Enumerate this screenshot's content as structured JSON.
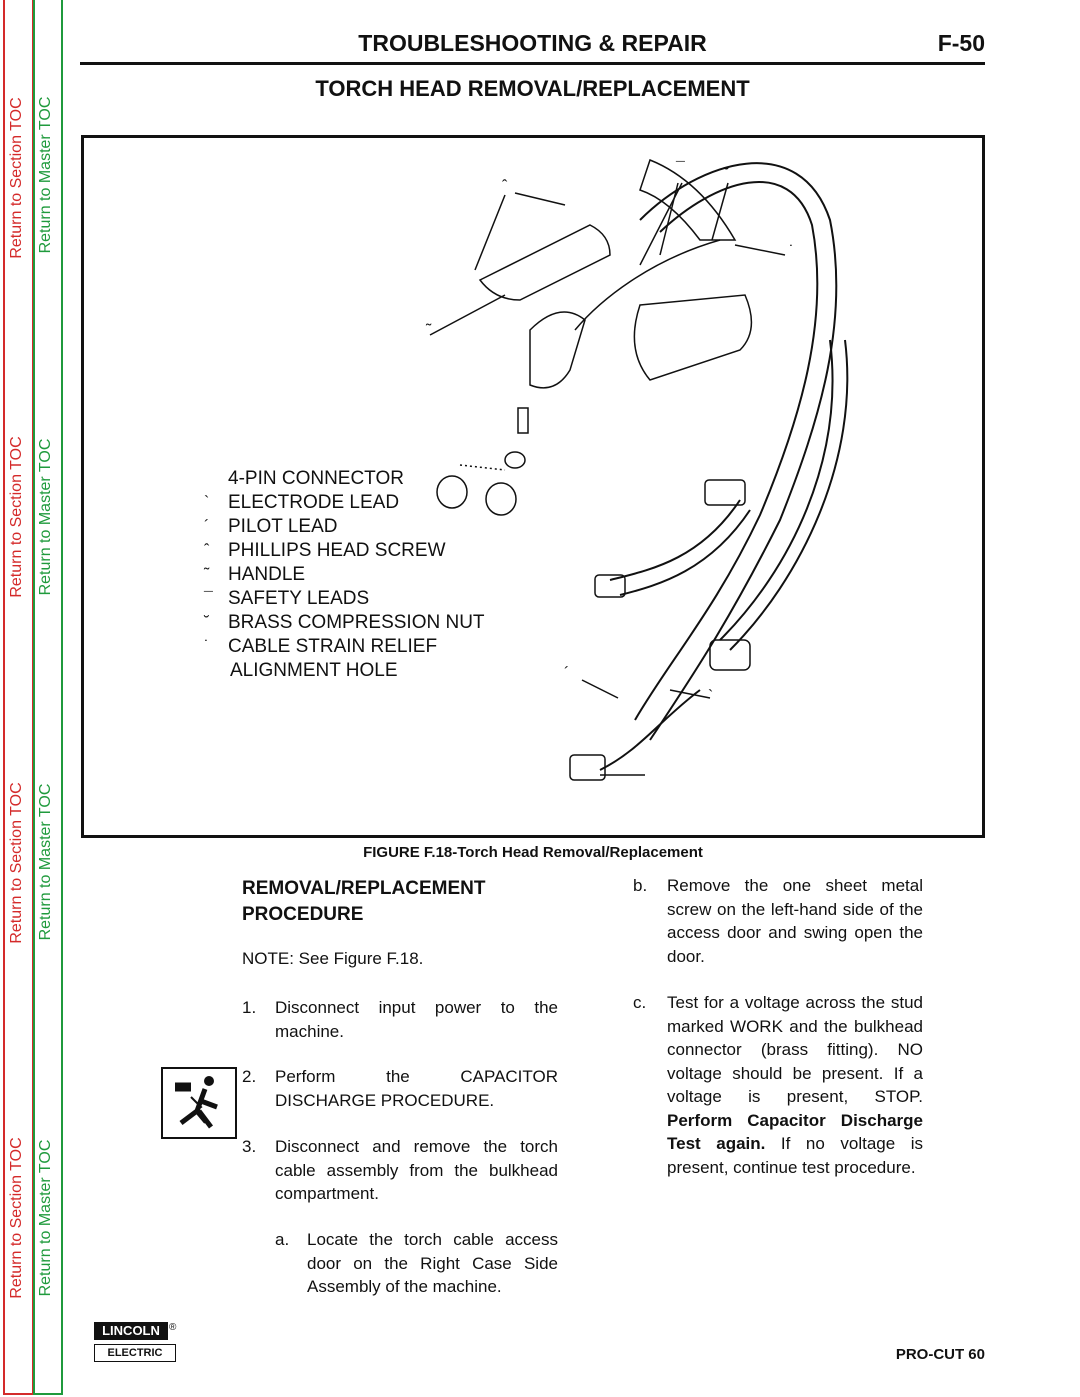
{
  "sidebar": {
    "section_toc": "Return to Section TOC",
    "master_toc": "Return to Master TOC"
  },
  "header": {
    "title": "TROUBLESHOOTING & REPAIR",
    "page": "F-50"
  },
  "section_title": "TORCH HEAD REMOVAL/REPLACEMENT",
  "figure": {
    "callouts": [
      "ˆ",
      "˜",
      "¯",
      "˘",
      "˙",
      "´",
      "`"
    ],
    "legend": [
      {
        "label": "4-PIN CONNECTOR"
      },
      {
        "marker": "`",
        "label": "ELECTRODE LEAD"
      },
      {
        "marker": "´",
        "label": "PILOT LEAD"
      },
      {
        "marker": "ˆ",
        "label": "PHILLIPS HEAD SCREW"
      },
      {
        "marker": "˜",
        "label": "HANDLE"
      },
      {
        "marker": "¯",
        "label": "SAFETY LEADS"
      },
      {
        "marker": "˘",
        "label": "BRASS COMPRESSION NUT"
      },
      {
        "marker": "˙",
        "label": "CABLE STRAIN RELIEF"
      },
      {
        "label": "ALIGNMENT HOLE"
      }
    ],
    "caption": "FIGURE F.18-Torch Head Removal/Replacement"
  },
  "procedure": {
    "heading": "REMOVAL/REPLACEMENT PROCEDURE",
    "note": "NOTE: See Figure F.18.",
    "steps": [
      {
        "num": "1.",
        "text": "Disconnect input power to the machine."
      },
      {
        "num": "2.",
        "text": "Perform the CAPACITOR DISCHARGE PROCEDURE."
      },
      {
        "num": "3.",
        "text": "Disconnect and remove the torch cable assembly from the bulkhead compartment."
      },
      {
        "num": "a.",
        "text": "Locate the torch cable access door on the Right Case Side Assembly of the machine."
      },
      {
        "num": "b.",
        "text": "Remove the one sheet metal screw on the left-hand side of the access door and swing open the door."
      },
      {
        "num": "c.",
        "segments": [
          {
            "text": "Test for a voltage across the stud marked WORK and the bulkhead connector (brass fitting).  NO voltage should be present.  If a voltage is present, STOP. ",
            "bold": false
          },
          {
            "text": "Perform Capacitor Discharge Test again.",
            "bold": true
          },
          {
            "text": " If no voltage is present, continue test procedure.",
            "bold": false
          }
        ]
      }
    ]
  },
  "footer": {
    "logo_top": "LINCOLN",
    "logo_mark": "®",
    "logo_bottom": "ELECTRIC",
    "model": "PRO-CUT 60"
  }
}
